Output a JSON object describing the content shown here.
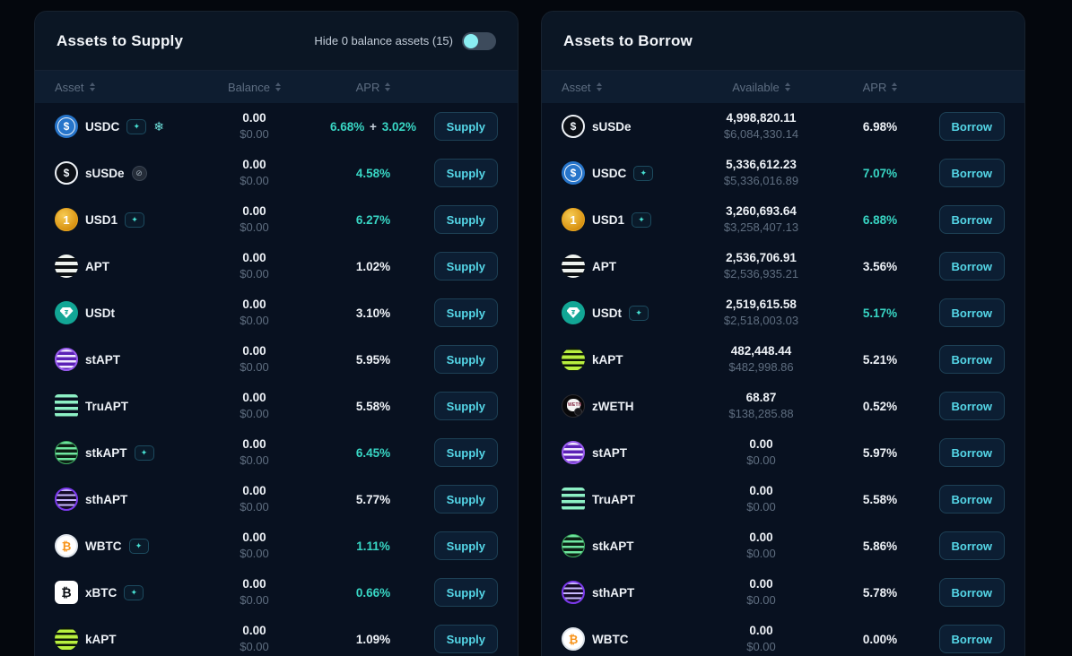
{
  "colors": {
    "apr_highlight": "#38d6c4",
    "button_text": "#55d7e8",
    "toggle_knob": "#8aeef2",
    "panel_background": "#0a1421"
  },
  "supply_panel": {
    "title": "Assets to Supply",
    "toggle": {
      "label": "Hide 0 balance assets (15)",
      "state": "off"
    },
    "columns": [
      "Asset",
      "Balance",
      "APR"
    ],
    "action_label": "Supply",
    "rows": [
      {
        "symbol": "USDC",
        "icon": "usdc-coin-icon",
        "badges": [
          "sparkle-badge",
          "snowflake-icon"
        ],
        "amount": "0.00",
        "usd": "$0.00",
        "apr": "6.68%",
        "apr_bonus": "3.02%",
        "apr_highlighted": true
      },
      {
        "symbol": "sUSDe",
        "icon": "susde-coin-icon",
        "badges": [
          "dim-badge"
        ],
        "amount": "0.00",
        "usd": "$0.00",
        "apr": "4.58%",
        "apr_highlighted": true
      },
      {
        "symbol": "USD1",
        "icon": "usd1-coin-icon",
        "badges": [
          "sparkle-badge"
        ],
        "amount": "0.00",
        "usd": "$0.00",
        "apr": "6.27%",
        "apr_highlighted": true
      },
      {
        "symbol": "APT",
        "icon": "apt-coin-icon",
        "badges": [],
        "amount": "0.00",
        "usd": "$0.00",
        "apr": "1.02%",
        "apr_highlighted": false
      },
      {
        "symbol": "USDt",
        "icon": "usdt-coin-icon",
        "badges": [],
        "amount": "0.00",
        "usd": "$0.00",
        "apr": "3.10%",
        "apr_highlighted": false
      },
      {
        "symbol": "stAPT",
        "icon": "stapt-coin-icon",
        "badges": [],
        "amount": "0.00",
        "usd": "$0.00",
        "apr": "5.95%",
        "apr_highlighted": false
      },
      {
        "symbol": "TruAPT",
        "icon": "truapt-coin-icon",
        "badges": [],
        "amount": "0.00",
        "usd": "$0.00",
        "apr": "5.58%",
        "apr_highlighted": false
      },
      {
        "symbol": "stkAPT",
        "icon": "stkapt-coin-icon",
        "badges": [
          "sparkle-badge"
        ],
        "amount": "0.00",
        "usd": "$0.00",
        "apr": "6.45%",
        "apr_highlighted": true
      },
      {
        "symbol": "sthAPT",
        "icon": "sthapt-coin-icon",
        "badges": [],
        "amount": "0.00",
        "usd": "$0.00",
        "apr": "5.77%",
        "apr_highlighted": false
      },
      {
        "symbol": "WBTC",
        "icon": "wbtc-coin-icon",
        "badges": [
          "sparkle-badge"
        ],
        "amount": "0.00",
        "usd": "$0.00",
        "apr": "1.11%",
        "apr_highlighted": true
      },
      {
        "symbol": "xBTC",
        "icon": "xbtc-coin-icon",
        "badges": [
          "sparkle-badge"
        ],
        "amount": "0.00",
        "usd": "$0.00",
        "apr": "0.66%",
        "apr_highlighted": true
      },
      {
        "symbol": "kAPT",
        "icon": "kapt-coin-icon",
        "badges": [],
        "amount": "0.00",
        "usd": "$0.00",
        "apr": "1.09%",
        "apr_highlighted": false
      }
    ]
  },
  "borrow_panel": {
    "title": "Assets to Borrow",
    "columns": [
      "Asset",
      "Available",
      "APR"
    ],
    "action_label": "Borrow",
    "rows": [
      {
        "symbol": "sUSDe",
        "icon": "susde-coin-icon",
        "badges": [],
        "amount": "4,998,820.11",
        "usd": "$6,084,330.14",
        "apr": "6.98%",
        "apr_highlighted": false
      },
      {
        "symbol": "USDC",
        "icon": "usdc-coin-icon",
        "badges": [
          "sparkle-badge"
        ],
        "amount": "5,336,612.23",
        "usd": "$5,336,016.89",
        "apr": "7.07%",
        "apr_highlighted": true
      },
      {
        "symbol": "USD1",
        "icon": "usd1-coin-icon",
        "badges": [
          "sparkle-badge"
        ],
        "amount": "3,260,693.64",
        "usd": "$3,258,407.13",
        "apr": "6.88%",
        "apr_highlighted": true
      },
      {
        "symbol": "APT",
        "icon": "apt-coin-icon",
        "badges": [],
        "amount": "2,536,706.91",
        "usd": "$2,536,935.21",
        "apr": "3.56%",
        "apr_highlighted": false
      },
      {
        "symbol": "USDt",
        "icon": "usdt-coin-icon",
        "badges": [
          "sparkle-badge"
        ],
        "amount": "2,519,615.58",
        "usd": "$2,518,003.03",
        "apr": "5.17%",
        "apr_highlighted": true
      },
      {
        "symbol": "kAPT",
        "icon": "kapt-coin-icon",
        "badges": [],
        "amount": "482,448.44",
        "usd": "$482,998.86",
        "apr": "5.21%",
        "apr_highlighted": false
      },
      {
        "symbol": "zWETH",
        "icon": "zweth-coin-icon",
        "badges": [],
        "amount": "68.87",
        "usd": "$138,285.88",
        "apr": "0.52%",
        "apr_highlighted": false
      },
      {
        "symbol": "stAPT",
        "icon": "stapt-coin-icon",
        "badges": [],
        "amount": "0.00",
        "usd": "$0.00",
        "apr": "5.97%",
        "apr_highlighted": false
      },
      {
        "symbol": "TruAPT",
        "icon": "truapt-coin-icon",
        "badges": [],
        "amount": "0.00",
        "usd": "$0.00",
        "apr": "5.58%",
        "apr_highlighted": false
      },
      {
        "symbol": "stkAPT",
        "icon": "stkapt-coin-icon",
        "badges": [],
        "amount": "0.00",
        "usd": "$0.00",
        "apr": "5.86%",
        "apr_highlighted": false
      },
      {
        "symbol": "sthAPT",
        "icon": "sthapt-coin-icon",
        "badges": [],
        "amount": "0.00",
        "usd": "$0.00",
        "apr": "5.78%",
        "apr_highlighted": false
      },
      {
        "symbol": "WBTC",
        "icon": "wbtc-coin-icon",
        "badges": [],
        "amount": "0.00",
        "usd": "$0.00",
        "apr": "0.00%",
        "apr_highlighted": false
      }
    ]
  }
}
